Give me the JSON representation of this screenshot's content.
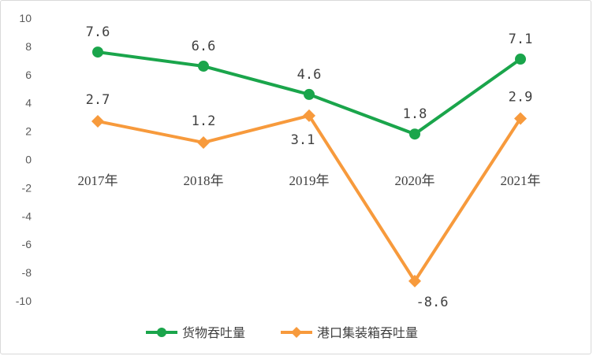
{
  "chart_data": {
    "type": "line",
    "categories": [
      "2017年",
      "2018年",
      "2019年",
      "2020年",
      "2021年"
    ],
    "series": [
      {
        "name": "货物吞吐量",
        "values": [
          7.6,
          6.6,
          4.6,
          1.8,
          7.1
        ],
        "labels": [
          "7.6",
          "6.6",
          "4.6",
          "1.8",
          "7.1"
        ],
        "color": "#1aa54b",
        "marker": "circle"
      },
      {
        "name": "港口集装箱吞吐量",
        "values": [
          2.7,
          1.2,
          3.1,
          -8.6,
          2.9
        ],
        "labels": [
          "2.7",
          "1.2",
          "3.1",
          "-8.6",
          "2.9"
        ],
        "color": "#f79a3c",
        "marker": "diamond"
      }
    ],
    "yticks": [
      "10",
      "8",
      "6",
      "4",
      "2",
      "0",
      "-2",
      "-4",
      "-6",
      "-8",
      "-10"
    ],
    "ylim": [
      -10,
      10
    ],
    "grid": false,
    "legend_position": "bottom"
  }
}
